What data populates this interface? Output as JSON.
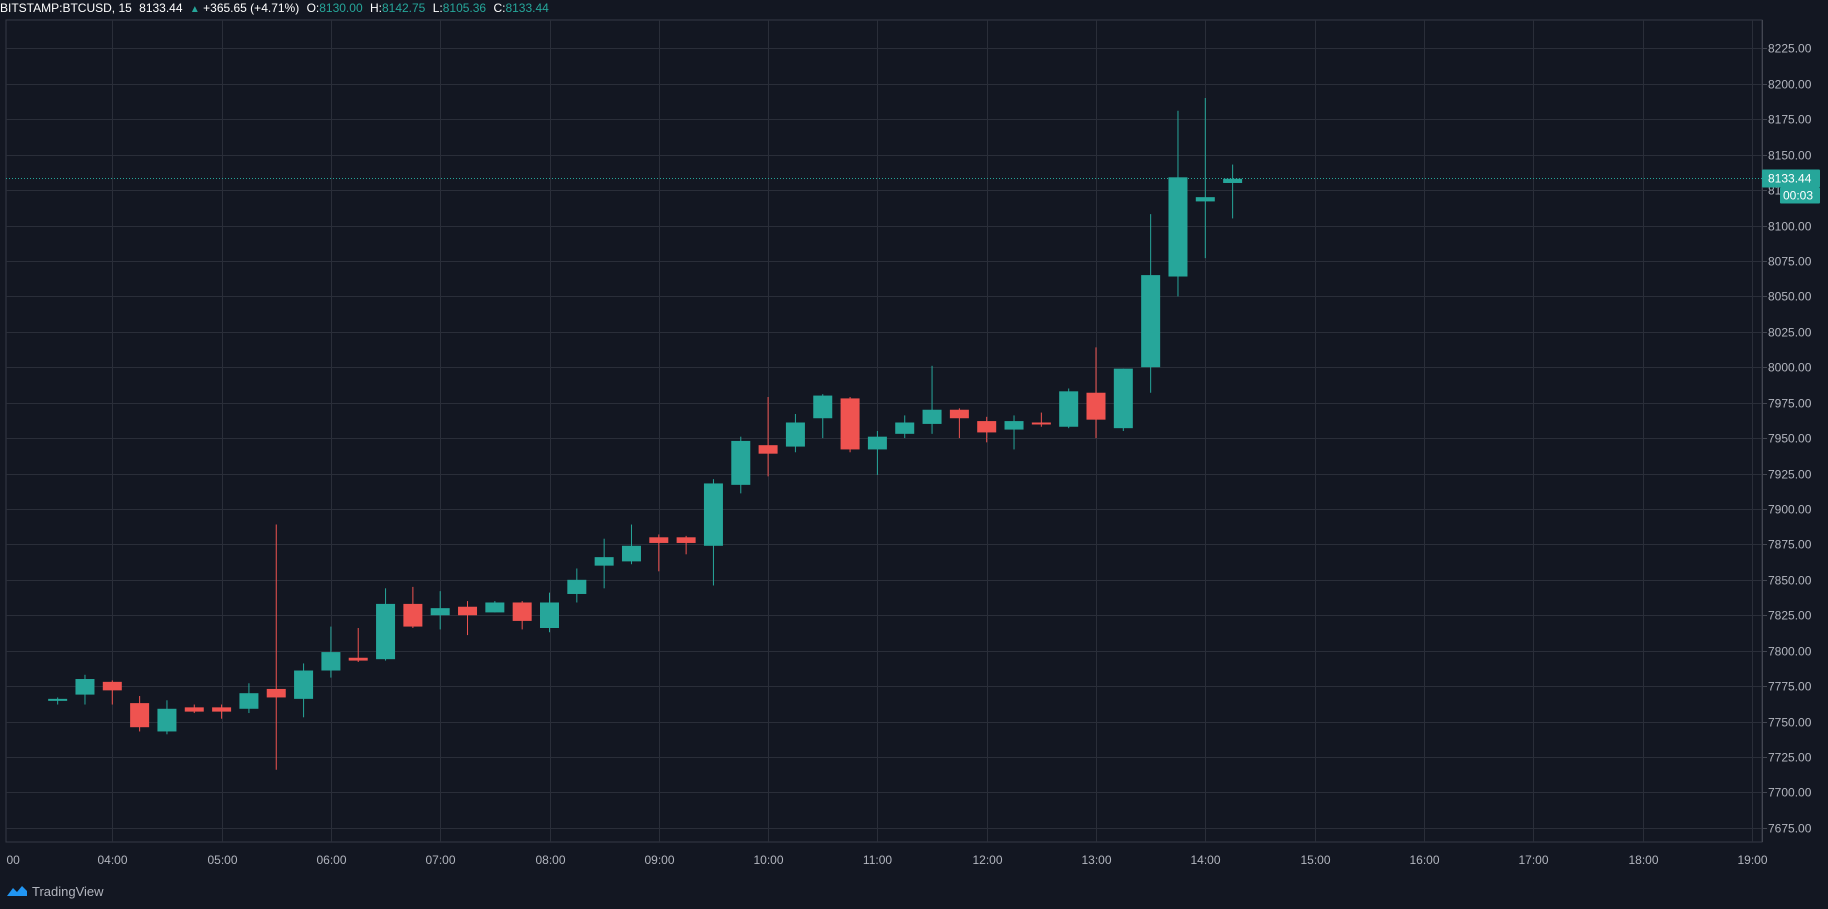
{
  "header": {
    "symbol": "BITSTAMP:BTCUSD, 15",
    "last": "8133.44",
    "change": "+365.65 (+4.71%)",
    "open_label": "O:",
    "open": "8130.00",
    "high_label": "H:",
    "high": "8142.75",
    "low_label": "L:",
    "low": "8105.36",
    "close_label": "C:",
    "close": "8133.44"
  },
  "branding": {
    "name": "TradingView",
    "icon": "tradingview-logo-icon"
  },
  "colors": {
    "background": "#131722",
    "grid": "#2a2e39",
    "up": "#26a69a",
    "down": "#ef5350",
    "text": "#b2b5be",
    "price_label_bg": "#26a69a"
  },
  "chart_data": {
    "type": "candlestick",
    "interval_minutes": 15,
    "x_tick_labels": [
      "00",
      "04:00",
      "05:00",
      "06:00",
      "07:00",
      "08:00",
      "09:00",
      "10:00",
      "11:00",
      "12:00",
      "13:00",
      "14:00",
      "15:00",
      "16:00",
      "17:00",
      "18:00",
      "19:00"
    ],
    "y_ticks": [
      7675,
      7700,
      7725,
      7750,
      7775,
      7800,
      7825,
      7850,
      7875,
      7900,
      7925,
      7950,
      7975,
      8000,
      8025,
      8050,
      8075,
      8100,
      8125,
      8150,
      8175,
      8200,
      8225
    ],
    "y_tick_labels": [
      "7675.00",
      "7700.00",
      "7725.00",
      "7750.00",
      "7775.00",
      "7800.00",
      "7825.00",
      "7850.00",
      "7875.00",
      "7900.00",
      "7925.00",
      "7950.00",
      "7975.00",
      "8000.00",
      "8025.00",
      "8050.00",
      "8075.00",
      "8100.00",
      "8125.00",
      "8150.00",
      "8175.00",
      "8200.00",
      "8225.00"
    ],
    "ylim": [
      7665,
      8245
    ],
    "grid": true,
    "last_price": 8133.44,
    "last_price_label": "8133.44",
    "countdown_label": "00:03",
    "candles": [
      {
        "time": "03:30",
        "o": 7765,
        "h": 7767,
        "l": 7762,
        "c": 7766
      },
      {
        "time": "03:45",
        "o": 7769,
        "h": 7783,
        "l": 7762,
        "c": 7780
      },
      {
        "time": "04:00",
        "o": 7778,
        "h": 7779,
        "l": 7762,
        "c": 7772
      },
      {
        "time": "04:15",
        "o": 7763,
        "h": 7768,
        "l": 7743,
        "c": 7746
      },
      {
        "time": "04:30",
        "o": 7743,
        "h": 7765,
        "l": 7741,
        "c": 7759
      },
      {
        "time": "04:45",
        "o": 7760,
        "h": 7762,
        "l": 7756,
        "c": 7757
      },
      {
        "time": "05:00",
        "o": 7760,
        "h": 7762,
        "l": 7752,
        "c": 7757
      },
      {
        "time": "05:15",
        "o": 7759,
        "h": 7777,
        "l": 7756,
        "c": 7770
      },
      {
        "time": "05:30",
        "o": 7773,
        "h": 7889,
        "l": 7716,
        "c": 7767
      },
      {
        "time": "05:45",
        "o": 7766,
        "h": 7791,
        "l": 7753,
        "c": 7786
      },
      {
        "time": "06:00",
        "o": 7786,
        "h": 7817,
        "l": 7781,
        "c": 7799
      },
      {
        "time": "06:15",
        "o": 7795,
        "h": 7816,
        "l": 7792,
        "c": 7793
      },
      {
        "time": "06:30",
        "o": 7794,
        "h": 7844,
        "l": 7793,
        "c": 7833
      },
      {
        "time": "06:45",
        "o": 7833,
        "h": 7845,
        "l": 7816,
        "c": 7817
      },
      {
        "time": "07:00",
        "o": 7825,
        "h": 7842,
        "l": 7815,
        "c": 7830
      },
      {
        "time": "07:15",
        "o": 7831,
        "h": 7835,
        "l": 7811,
        "c": 7825
      },
      {
        "time": "07:30",
        "o": 7827,
        "h": 7835,
        "l": 7827,
        "c": 7834
      },
      {
        "time": "07:45",
        "o": 7834,
        "h": 7835,
        "l": 7815,
        "c": 7821
      },
      {
        "time": "08:00",
        "o": 7816,
        "h": 7841,
        "l": 7813,
        "c": 7834
      },
      {
        "time": "08:15",
        "o": 7840,
        "h": 7858,
        "l": 7834,
        "c": 7850
      },
      {
        "time": "08:30",
        "o": 7860,
        "h": 7879,
        "l": 7844,
        "c": 7866
      },
      {
        "time": "08:45",
        "o": 7863,
        "h": 7889,
        "l": 7861,
        "c": 7874
      },
      {
        "time": "09:00",
        "o": 7880,
        "h": 7882,
        "l": 7856,
        "c": 7876
      },
      {
        "time": "09:15",
        "o": 7880,
        "h": 7881,
        "l": 7868,
        "c": 7876
      },
      {
        "time": "09:30",
        "o": 7874,
        "h": 7921,
        "l": 7846,
        "c": 7918
      },
      {
        "time": "09:45",
        "o": 7917,
        "h": 7951,
        "l": 7911,
        "c": 7948
      },
      {
        "time": "10:00",
        "o": 7945,
        "h": 7979,
        "l": 7923,
        "c": 7939
      },
      {
        "time": "10:15",
        "o": 7944,
        "h": 7967,
        "l": 7940,
        "c": 7961
      },
      {
        "time": "10:30",
        "o": 7964,
        "h": 7981,
        "l": 7950,
        "c": 7980
      },
      {
        "time": "10:45",
        "o": 7978,
        "h": 7979,
        "l": 7940,
        "c": 7942
      },
      {
        "time": "11:00",
        "o": 7942,
        "h": 7955,
        "l": 7924,
        "c": 7951
      },
      {
        "time": "11:15",
        "o": 7953,
        "h": 7966,
        "l": 7950,
        "c": 7961
      },
      {
        "time": "11:30",
        "o": 7960,
        "h": 8001,
        "l": 7953,
        "c": 7970
      },
      {
        "time": "11:45",
        "o": 7970,
        "h": 7971,
        "l": 7950,
        "c": 7964
      },
      {
        "time": "12:00",
        "o": 7962,
        "h": 7965,
        "l": 7947,
        "c": 7954
      },
      {
        "time": "12:15",
        "o": 7956,
        "h": 7966,
        "l": 7942,
        "c": 7962
      },
      {
        "time": "12:30",
        "o": 7961,
        "h": 7968,
        "l": 7958,
        "c": 7960
      },
      {
        "time": "12:45",
        "o": 7958,
        "h": 7985,
        "l": 7957,
        "c": 7983
      },
      {
        "time": "13:00",
        "o": 7982,
        "h": 8014,
        "l": 7950,
        "c": 7963
      },
      {
        "time": "13:15",
        "o": 7957,
        "h": 7999,
        "l": 7955,
        "c": 7999
      },
      {
        "time": "13:30",
        "o": 8000,
        "h": 8108,
        "l": 7982,
        "c": 8065
      },
      {
        "time": "13:45",
        "o": 8064,
        "h": 8181,
        "l": 8050,
        "c": 8134
      },
      {
        "time": "14:00",
        "o": 8117,
        "h": 8190,
        "l": 8077,
        "c": 8120
      },
      {
        "time": "14:15",
        "o": 8130,
        "h": 8143,
        "l": 8105,
        "c": 8133
      }
    ]
  }
}
